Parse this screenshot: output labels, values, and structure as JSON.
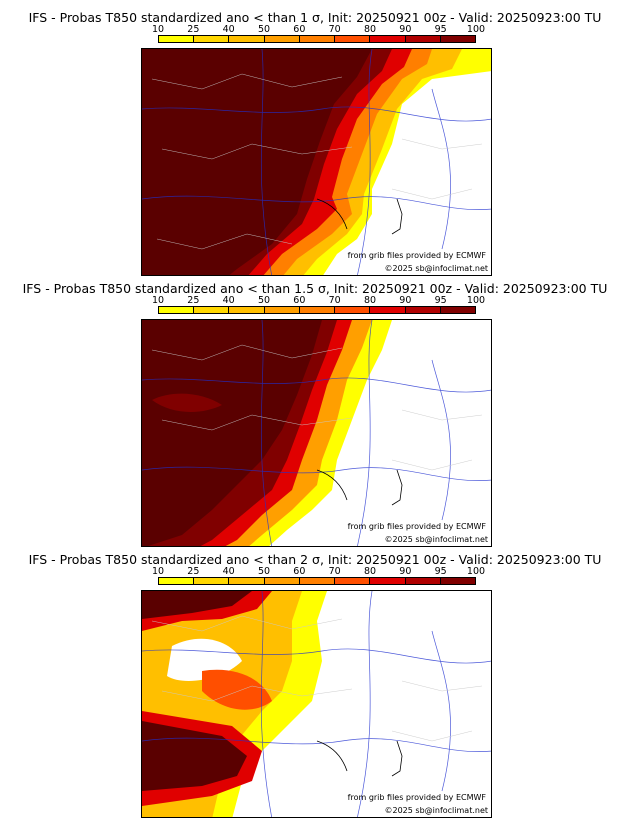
{
  "legend": {
    "ticks": [
      "10",
      "25",
      "40",
      "50",
      "60",
      "70",
      "80",
      "90",
      "95",
      "100"
    ],
    "colors": [
      "#ffff00",
      "#ffd700",
      "#ffbf00",
      "#ff9f00",
      "#ff7f00",
      "#ff4f00",
      "#e00000",
      "#b00000",
      "#800000",
      "#5a0000"
    ]
  },
  "panels": [
    {
      "title": "IFS - Probas T850  standardized ano < than 1 σ, Init: 20250921 00z - Valid: 20250923:00 TU",
      "credit": "from grib files provided by ECMWF",
      "copyright": "©2025 sb@infoclimat.net"
    },
    {
      "title": "IFS - Probas T850  standardized ano < than 1.5 σ, Init: 20250921 00z - Valid: 20250923:00 TU",
      "credit": "from grib files provided by ECMWF",
      "copyright": "©2025 sb@infoclimat.net"
    },
    {
      "title": "IFS - Probas T850  standardized ano < than 2 σ, Init: 20250921 00z - Valid: 20250923:00 TU",
      "credit": "from grib files provided by ECMWF",
      "copyright": "©2025 sb@infoclimat.net"
    }
  ],
  "map_extent": {
    "region": "France and western Alps",
    "levels_shown": "probability %"
  }
}
